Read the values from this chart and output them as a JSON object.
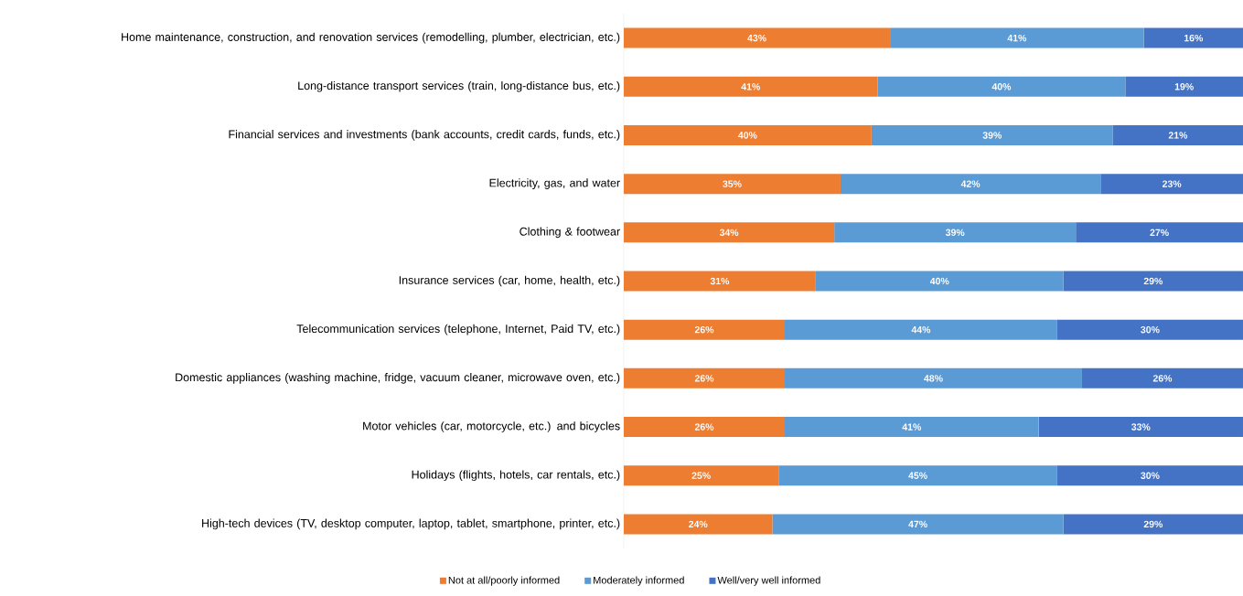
{
  "chart_data": {
    "type": "bar",
    "orientation": "horizontal",
    "stacked": true,
    "xlim": [
      0,
      100
    ],
    "tick_labels": "y",
    "legend": "bottom",
    "categories": [
      "Home maintenance, construction, and renovation services (remodelling, plumber, electrician, etc.)",
      "Long-distance transport services (train, long-distance bus, etc.)",
      "Financial services and investments (bank accounts, credit cards, funds, etc.)",
      "Electricity, gas, and water",
      "Clothing & footwear",
      "Insurance services (car, home, health, etc.)",
      "Telecommunication services (telephone, Internet, Paid TV, etc.)",
      "Domestic appliances (washing machine, fridge, vacuum cleaner, microwave oven, etc.)",
      "Motor vehicles (car, motorcycle, etc.) and bicycles",
      "Holidays (flights, hotels, car rentals, etc.)",
      "High-tech devices (TV, desktop computer, laptop, tablet, smartphone, printer, etc.)"
    ],
    "series": [
      {
        "name": "Not at all/poorly informed",
        "color": "#ed7d31",
        "values": [
          43,
          41,
          40,
          35,
          34,
          31,
          26,
          26,
          26,
          25,
          24
        ],
        "value_labels": [
          "43%",
          "41%",
          "40%",
          "35%",
          "34%",
          "31%",
          "26%",
          "26%",
          "26%",
          "25%",
          "24%"
        ]
      },
      {
        "name": "Moderately informed",
        "color": "#5b9bd5",
        "values": [
          41,
          40,
          39,
          42,
          39,
          40,
          44,
          48,
          41,
          45,
          47
        ],
        "value_labels": [
          "41%",
          "40%",
          "39%",
          "42%",
          "39%",
          "40%",
          "44%",
          "48%",
          "41%",
          "45%",
          "47%"
        ]
      },
      {
        "name": "Well/very well informed",
        "color": "#4472c4",
        "values": [
          16,
          19,
          21,
          23,
          27,
          29,
          30,
          26,
          33,
          30,
          29
        ],
        "value_labels": [
          "16%",
          "19%",
          "21%",
          "23%",
          "27%",
          "29%",
          "30%",
          "26%",
          "33%",
          "30%",
          "29%"
        ]
      }
    ]
  }
}
